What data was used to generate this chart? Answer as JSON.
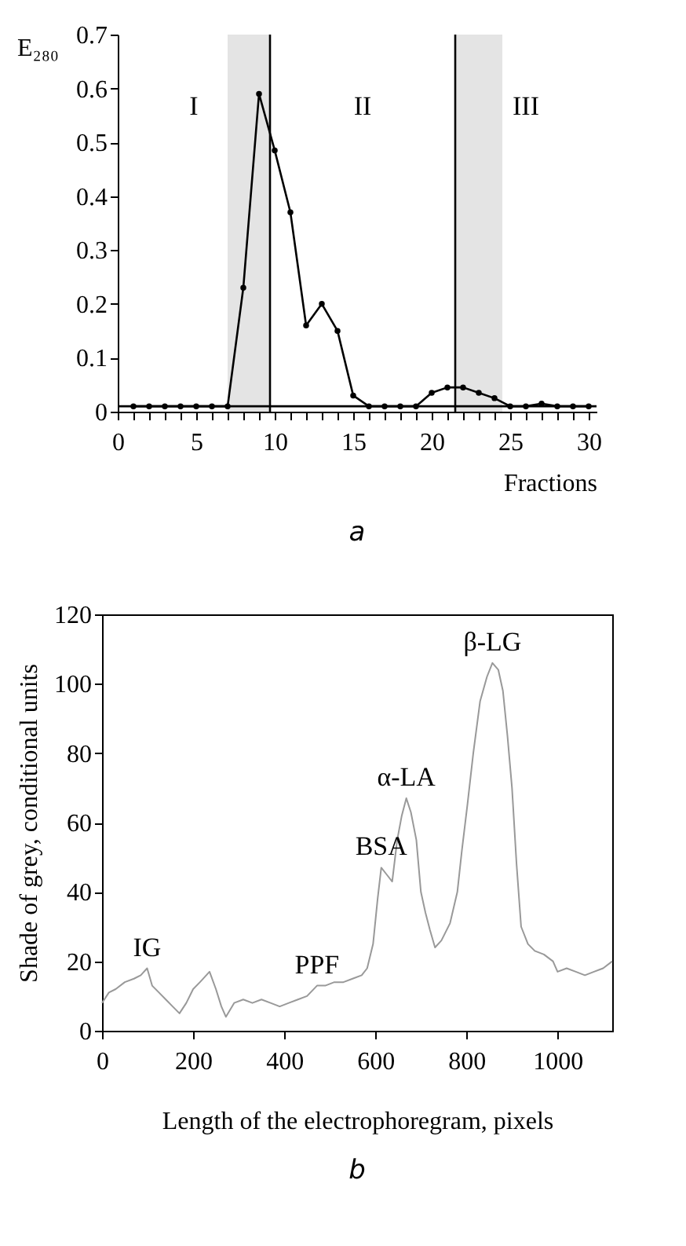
{
  "chart_data": [
    {
      "type": "line",
      "title": "a",
      "xlabel": "Fractions",
      "ylabel": "E₂₈₀",
      "x": [
        1,
        2,
        3,
        4,
        5,
        6,
        7,
        8,
        9,
        10,
        11,
        12,
        13,
        14,
        15,
        16,
        17,
        18,
        19,
        20,
        21,
        22,
        23,
        24,
        25,
        26,
        27,
        28,
        29,
        30
      ],
      "series": [
        {
          "color": "#000000",
          "values": [
            0.01,
            0.01,
            0.01,
            0.01,
            0.01,
            0.01,
            0.01,
            0.23,
            0.59,
            0.485,
            0.37,
            0.16,
            0.2,
            0.15,
            0.03,
            0.01,
            0.01,
            0.01,
            0.01,
            0.035,
            0.045,
            0.045,
            0.035,
            0.025,
            0.01,
            0.01,
            0.015,
            0.01,
            0.01,
            0.01
          ]
        }
      ],
      "marker": "circle",
      "line_style": "solid",
      "grid": false,
      "xlim": [
        0,
        30.5
      ],
      "ylim": [
        0,
        0.7
      ],
      "xticks": [
        0,
        {
          "value": 1,
          "label": null
        },
        {
          "value": 2,
          "label": null
        },
        {
          "value": 3,
          "label": null
        },
        {
          "value": 4,
          "label": null
        },
        5,
        {
          "value": 6,
          "label": null
        },
        {
          "value": 7,
          "label": null
        },
        {
          "value": 8,
          "label": null
        },
        {
          "value": 9,
          "label": null
        },
        10,
        {
          "value": 11,
          "label": null
        },
        {
          "value": 12,
          "label": null
        },
        {
          "value": 13,
          "label": null
        },
        {
          "value": 14,
          "label": null
        },
        15,
        {
          "value": 16,
          "label": null
        },
        {
          "value": 17,
          "label": null
        },
        {
          "value": 18,
          "label": null
        },
        {
          "value": 19,
          "label": null
        },
        20,
        {
          "value": 21,
          "label": null
        },
        {
          "value": 22,
          "label": null
        },
        {
          "value": 23,
          "label": null
        },
        {
          "value": 24,
          "label": null
        },
        25,
        {
          "value": 26,
          "label": null
        },
        {
          "value": 27,
          "label": null
        },
        {
          "value": 28,
          "label": null
        },
        {
          "value": 29,
          "label": null
        },
        30
      ],
      "yticks": [
        0,
        0.1,
        0.2,
        0.3,
        0.4,
        0.5,
        0.6,
        0.7
      ],
      "ref_lines": [
        {
          "axis": "x",
          "value": 9.7,
          "color": "#000000"
        },
        {
          "axis": "x",
          "value": 21.5,
          "color": "#000000"
        },
        {
          "axis": "y",
          "value": 0.01,
          "color": "#000000"
        }
      ],
      "bands": [
        {
          "axis": "x",
          "from": 7,
          "to": 9.7,
          "color": "#d9d9d9"
        },
        {
          "axis": "x",
          "from": 21.5,
          "to": 24.5,
          "color": "#d9d9d9"
        }
      ],
      "annotations": [
        "I",
        "II",
        "III"
      ]
    },
    {
      "type": "line",
      "title": "b",
      "xlabel": "Length of the electrophoregram, pixels",
      "ylabel": "Shade of grey, conditional units",
      "x": [
        0,
        15,
        30,
        50,
        70,
        85,
        99,
        110,
        125,
        140,
        155,
        170,
        185,
        200,
        215,
        236,
        250,
        262,
        272,
        290,
        310,
        330,
        350,
        370,
        390,
        410,
        430,
        450,
        472,
        490,
        510,
        530,
        550,
        570,
        582,
        595,
        605,
        613,
        625,
        637,
        648,
        658,
        668,
        678,
        690,
        700,
        710,
        720,
        731,
        745,
        764,
        780,
        790,
        802,
        815,
        830,
        845,
        857,
        870,
        880,
        890,
        900,
        910,
        920,
        935,
        950,
        970,
        990,
        1000,
        1020,
        1040,
        1060,
        1080,
        1100,
        1120
      ],
      "series": [
        {
          "color": "#999999",
          "values": [
            8,
            11,
            12,
            14,
            15,
            16,
            18,
            13,
            11,
            9,
            7,
            5,
            8,
            12,
            14,
            17,
            12,
            7,
            4,
            8,
            9,
            8,
            9,
            8,
            7,
            8,
            9,
            10,
            13,
            13,
            14,
            14,
            15,
            16,
            18,
            25,
            38,
            47,
            45,
            43,
            55,
            62,
            67,
            63,
            55,
            40,
            34,
            29,
            24,
            26,
            31,
            40,
            52,
            65,
            80,
            95,
            102,
            106,
            104,
            98,
            85,
            70,
            48,
            30,
            25,
            23,
            22,
            20,
            17,
            18,
            17,
            16,
            17,
            18,
            20
          ]
        }
      ],
      "marker": "none",
      "line_style": "solid",
      "grid": false,
      "xlim": [
        0,
        1120
      ],
      "ylim": [
        0,
        120
      ],
      "xticks": [
        0,
        200,
        400,
        600,
        800,
        1000
      ],
      "yticks": [
        0,
        20,
        40,
        60,
        80,
        100,
        120
      ],
      "annotations": [
        {
          "text": "IG",
          "x": 99,
          "y": 18
        },
        {
          "text": "PPF",
          "x": 472,
          "y": 13
        },
        {
          "text": "BSA",
          "x": 613,
          "y": 47
        },
        {
          "text": "α-LA",
          "x": 668,
          "y": 67
        },
        {
          "text": "β-LG",
          "x": 857,
          "y": 106
        }
      ]
    }
  ]
}
